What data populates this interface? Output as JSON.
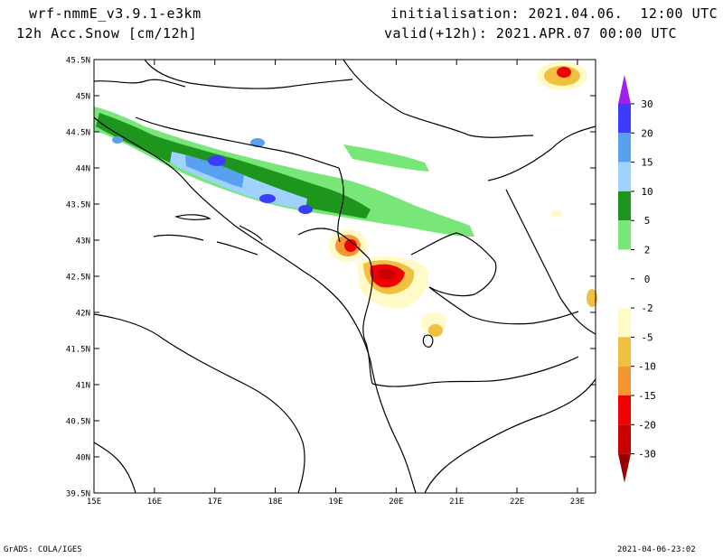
{
  "header": {
    "model": "wrf-nmmE_v3.9.1-e3km",
    "field": "12h Acc.Snow [cm/12h]",
    "init": "initialisation: 2021.04.06.  12:00 UTC",
    "valid": "valid(+12h): 2021.APR.07 00:00 UTC"
  },
  "footer": {
    "left": "GrADS: COLA/IGES",
    "right": "2021-04-06-23:02"
  },
  "axes": {
    "lat_labels": [
      "45.5N",
      "45N",
      "44.5N",
      "44N",
      "43.5N",
      "43N",
      "42.5N",
      "42N",
      "41.5N",
      "41N",
      "40.5N",
      "40N",
      "39.5N"
    ],
    "lon_labels": [
      "15E",
      "16E",
      "17E",
      "18E",
      "19E",
      "20E",
      "21E",
      "22E",
      "23E"
    ]
  },
  "legend": {
    "labels": [
      "30",
      "20",
      "15",
      "10",
      "5",
      "2",
      "0",
      "-2",
      "-5",
      "-10",
      "-15",
      "-20",
      "-30"
    ],
    "colors": {
      "over": "#a020f0",
      "c20_30": "#3c3cff",
      "c15_20": "#5aa0f0",
      "c10_15": "#a0d2ff",
      "c5_10": "#1e961e",
      "c2_5": "#78e678",
      "c0_2": "#ffffff",
      "cm2_0": "#ffffff",
      "cm5_m2": "#fffac8",
      "cm10_m5": "#f0c040",
      "cm15_m10": "#f59632",
      "cm20_m15": "#f00000",
      "cm30_m20": "#c80000",
      "under": "#960000"
    }
  }
}
